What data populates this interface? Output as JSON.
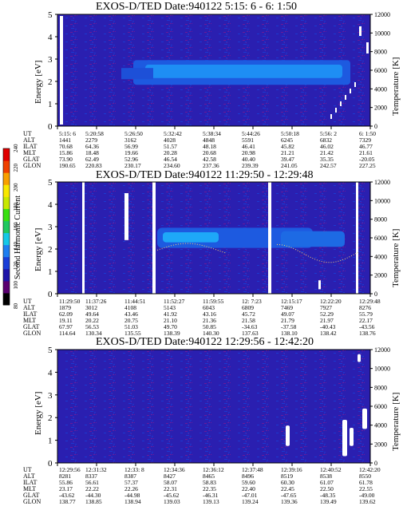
{
  "chart_data": [
    {
      "type": "heatmap",
      "title": "EXOS-D/TED   Date:940122  5:15: 6 - 6: 1:50",
      "ylabel": "Energy [eV]",
      "y2label": "Temperature [K]",
      "ylim": [
        0,
        5
      ],
      "y_ticks": [
        "5",
        "4",
        "3",
        "2",
        "1",
        "0"
      ],
      "y2lim": [
        0,
        12000
      ],
      "y2_ticks": [
        "12000",
        "10000",
        "8000",
        "6000",
        "4000",
        "2000",
        "0"
      ],
      "row_labels": [
        "UT",
        "ALT",
        "ILAT",
        "MLT",
        "GLAT",
        "GLON"
      ],
      "columns": [
        [
          "5:15: 6",
          "1441",
          "70.68",
          "15.86",
          "73.90",
          "190.65"
        ],
        [
          "5:20:58",
          "2279",
          "64.36",
          "18.48",
          "62.49",
          "220.83"
        ],
        [
          "5:26:50",
          "3162",
          "56.99",
          "19.66",
          "52.96",
          "230.17"
        ],
        [
          "5:32:42",
          "4028",
          "51.57",
          "20.28",
          "46.54",
          "234.60"
        ],
        [
          "5:38:34",
          "4848",
          "48.18",
          "20.68",
          "42.58",
          "237.36"
        ],
        [
          "5:44:26",
          "5591",
          "46.41",
          "20.98",
          "40.40",
          "239.39"
        ],
        [
          "5:50:18",
          "6245",
          "45.82",
          "21.21",
          "39.47",
          "241.05"
        ],
        [
          "5:56: 2",
          "6832",
          "46.02",
          "21.42",
          "35.35",
          "242.57"
        ],
        [
          "6: 1:50",
          "7329",
          "46.77",
          "21.61",
          "-20.05",
          "227.25"
        ]
      ]
    },
    {
      "type": "heatmap",
      "title": "EXOS-D/TED   Date:940122  11:29:50 - 12:29:48",
      "ylabel": "Energy [eV]",
      "y2label": "Temperature [K]",
      "ylim": [
        0,
        5
      ],
      "y_ticks": [
        "5",
        "4",
        "3",
        "2",
        "1",
        "0"
      ],
      "y2lim": [
        0,
        12000
      ],
      "y2_ticks": [
        "12000",
        "10000",
        "8000",
        "6000",
        "4000",
        "2000",
        "0"
      ],
      "row_labels": [
        "UT",
        "ALT",
        "ILAT",
        "MLT",
        "GLAT",
        "GLON"
      ],
      "columns": [
        [
          "11:29:50",
          "1879",
          "62.09",
          "19.11",
          "67.97",
          "114.64"
        ],
        [
          "11:37:26",
          "3012",
          "49.64",
          "20.22",
          "56.53",
          "130.34"
        ],
        [
          "11:44:51",
          "4108",
          "43.46",
          "20.75",
          "51.03",
          "135.55"
        ],
        [
          "11:52:27",
          "5143",
          "41.92",
          "21.10",
          "49.70",
          "138.39"
        ],
        [
          "11:59:55",
          "6043",
          "43.16",
          "21.36",
          "50.85",
          "140.30"
        ],
        [
          "12: 7:23",
          "6809",
          "45.72",
          "21.58",
          "-34.63",
          "137.63"
        ],
        [
          "12:15:17",
          "7469",
          "49.07",
          "21.79",
          "-37.58",
          "138.10"
        ],
        [
          "12:22:20",
          "7927",
          "52.29",
          "21.97",
          "-40.43",
          "138.42"
        ],
        [
          "12:29:48",
          "8276",
          "55.79",
          "22.17",
          "-43.56",
          "138.76"
        ]
      ]
    },
    {
      "type": "heatmap",
      "title": "EXOS-D/TED   Date:940122  12:29:56 - 12:42:20",
      "ylabel": "Energy [eV]",
      "y2label": "Temperature [K]",
      "ylim": [
        0,
        5
      ],
      "y_ticks": [
        "5",
        "4",
        "3",
        "2",
        "1",
        "0"
      ],
      "y2lim": [
        0,
        12000
      ],
      "y2_ticks": [
        "12000",
        "10000",
        "8000",
        "6000",
        "4000",
        "2000",
        "0"
      ],
      "row_labels": [
        "UT",
        "ALT",
        "ILAT",
        "MLT",
        "GLAT",
        "GLON"
      ],
      "columns": [
        [
          "12:29:56",
          "8281",
          "55.86",
          "23.17",
          "-43.62",
          "138.77"
        ],
        [
          "12:31:32",
          "8337",
          "56.61",
          "22.22",
          "-44.30",
          "138.85"
        ],
        [
          "12:33: 8",
          "8387",
          "57.37",
          "22.26",
          "-44.98",
          "138.94"
        ],
        [
          "12:34:36",
          "8427",
          "58.07",
          "22.31",
          "-45.62",
          "139.03"
        ],
        [
          "12:36:12",
          "8465",
          "58.83",
          "22.35",
          "-46.31",
          "139.13"
        ],
        [
          "12:37:48",
          "8496",
          "59.60",
          "22.40",
          "-47.01",
          "139.24"
        ],
        [
          "12:39:16",
          "8519",
          "60.30",
          "22.45",
          "-47.65",
          "139.36"
        ],
        [
          "12:40:52",
          "8538",
          "61.07",
          "22.50",
          "-48.35",
          "139.49"
        ],
        [
          "12:42:20",
          "8550",
          "61.78",
          "22.55",
          "-49.00",
          "139.62"
        ]
      ]
    }
  ],
  "colorbar": {
    "label": "Second Harmonic Current",
    "ticks": [
      "80",
      "100",
      "120",
      "140",
      "160",
      "180",
      "200",
      "220",
      "240"
    ],
    "colors": [
      "#000000",
      "#5a0070",
      "#1e14a8",
      "#1a3ed8",
      "#1e7ef0",
      "#14c8e8",
      "#20c860",
      "#38e010",
      "#c8e800",
      "#f8e800",
      "#f8a000",
      "#f04000",
      "#e00000"
    ]
  }
}
